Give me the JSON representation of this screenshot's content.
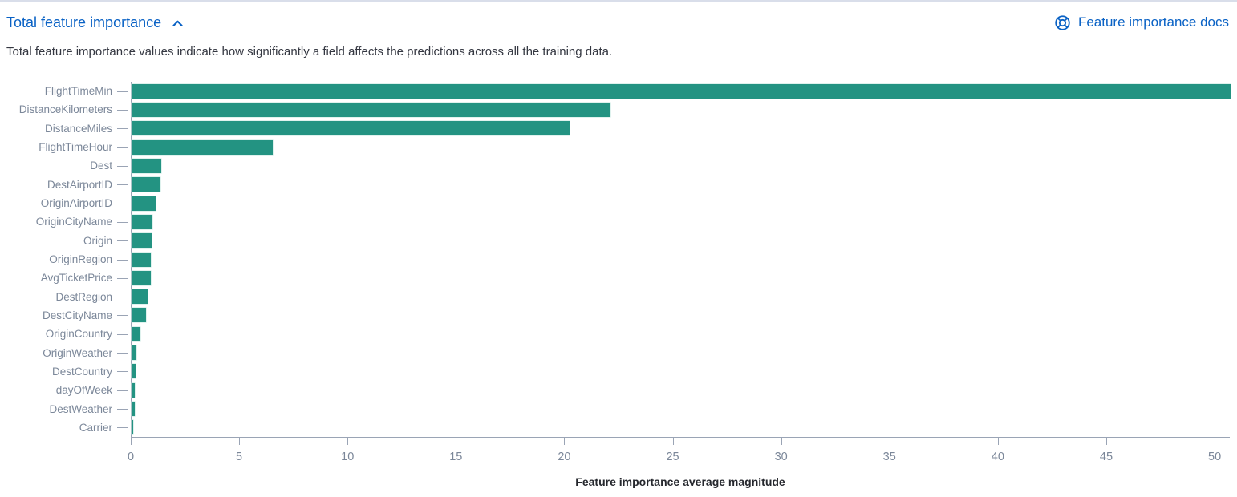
{
  "header": {
    "title": "Total feature importance",
    "subtitle": "Total feature importance values indicate how significantly a field affects the predictions across all the training data.",
    "docs_link_label": "Feature importance docs"
  },
  "icons": {
    "collapse": "chevron-up-icon",
    "docs": "help-life-ring-icon"
  },
  "colors": {
    "bar": "#239382",
    "link_blue": "#0a62c5",
    "axis_line": "#9aa4b5",
    "tick_label_text": "#7b8799",
    "description_text": "#343741",
    "axis_title_text": "#26282e"
  },
  "chart_data": {
    "type": "bar",
    "orientation": "horizontal",
    "title": "Total feature importance",
    "xlabel": "Feature importance average magnitude",
    "ylabel": "",
    "grid": false,
    "legend": false,
    "xlim": [
      0,
      50.7
    ],
    "xticks": [
      0,
      5,
      10,
      15,
      20,
      25,
      30,
      35,
      40,
      45,
      50
    ],
    "categories": [
      "FlightTimeMin",
      "DistanceKilometers",
      "DistanceMiles",
      "FlightTimeHour",
      "Dest",
      "DestAirportID",
      "OriginAirportID",
      "OriginCityName",
      "Origin",
      "OriginRegion",
      "AvgTicketPrice",
      "DestRegion",
      "DestCityName",
      "OriginCountry",
      "OriginWeather",
      "DestCountry",
      "dayOfWeek",
      "DestWeather",
      "Carrier"
    ],
    "values": [
      50.7,
      22.1,
      20.2,
      6.5,
      1.37,
      1.33,
      1.1,
      0.96,
      0.93,
      0.9,
      0.87,
      0.75,
      0.68,
      0.42,
      0.21,
      0.17,
      0.15,
      0.13,
      0.05
    ]
  }
}
